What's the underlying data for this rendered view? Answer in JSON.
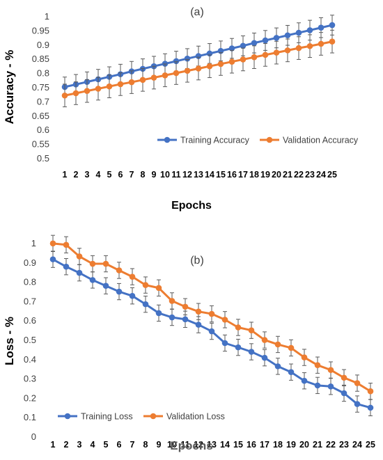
{
  "colors": {
    "training": "#4472C4",
    "validation": "#ED7D31",
    "error_bar": "#595959",
    "text": "#404040"
  },
  "chart_data": [
    {
      "type": "line",
      "title": "(a)",
      "xlabel": "Epochs",
      "ylabel": "Accuracy - %",
      "categories": [
        "1",
        "2",
        "3",
        "4",
        "5",
        "6",
        "7",
        "8",
        "9",
        "10",
        "11",
        "12",
        "13",
        "14",
        "15",
        "16",
        "17",
        "18",
        "19",
        "20",
        "21",
        "22",
        "23",
        "24",
        "25"
      ],
      "ylim": [
        0.5,
        1
      ],
      "yticks": [
        "0.5",
        "0.55",
        "0.6",
        "0.65",
        "0.7",
        "0.75",
        "0.8",
        "0.85",
        "0.9",
        "0.95",
        "1"
      ],
      "grid": false,
      "legend": "bottom-right",
      "series": [
        {
          "name": "Training Accuracy",
          "values": [
            0.75,
            0.759,
            0.768,
            0.777,
            0.786,
            0.795,
            0.805,
            0.814,
            0.823,
            0.832,
            0.841,
            0.85,
            0.859,
            0.868,
            0.877,
            0.886,
            0.895,
            0.905,
            0.914,
            0.923,
            0.932,
            0.941,
            0.95,
            0.959,
            0.968
          ],
          "error": 0.035
        },
        {
          "name": "Validation Accuracy",
          "values": [
            0.72,
            0.728,
            0.736,
            0.744,
            0.752,
            0.76,
            0.767,
            0.775,
            0.783,
            0.791,
            0.799,
            0.807,
            0.815,
            0.823,
            0.831,
            0.839,
            0.847,
            0.855,
            0.863,
            0.871,
            0.879,
            0.887,
            0.894,
            0.902,
            0.91
          ],
          "error": 0.04
        }
      ]
    },
    {
      "type": "line",
      "title": "(b)",
      "xlabel": "Epochs",
      "ylabel": "Loss - %",
      "categories": [
        "1",
        "2",
        "3",
        "4",
        "5",
        "6",
        "7",
        "8",
        "9",
        "10",
        "11",
        "12",
        "13",
        "14",
        "15",
        "16",
        "17",
        "18",
        "19",
        "20",
        "21",
        "22",
        "23",
        "24",
        "25"
      ],
      "ylim": [
        0,
        1
      ],
      "yticks": [
        "0",
        "0.1",
        "0.2",
        "0.3",
        "0.4",
        "0.5",
        "0.6",
        "0.7",
        "0.8",
        "0.9",
        "1"
      ],
      "grid": false,
      "legend": "bottom-left",
      "series": [
        {
          "name": "Training Loss",
          "values": [
            0.915,
            0.877,
            0.845,
            0.808,
            0.778,
            0.748,
            0.726,
            0.683,
            0.637,
            0.615,
            0.605,
            0.577,
            0.543,
            0.482,
            0.46,
            0.437,
            0.406,
            0.362,
            0.332,
            0.287,
            0.263,
            0.258,
            0.223,
            0.167,
            0.148
          ],
          "error": 0.042
        },
        {
          "name": "Validation Loss",
          "values": [
            0.997,
            0.99,
            0.93,
            0.892,
            0.892,
            0.858,
            0.825,
            0.782,
            0.767,
            0.7,
            0.67,
            0.645,
            0.633,
            0.603,
            0.563,
            0.548,
            0.498,
            0.475,
            0.457,
            0.408,
            0.368,
            0.343,
            0.303,
            0.275,
            0.233
          ],
          "error": 0.042
        }
      ]
    }
  ]
}
